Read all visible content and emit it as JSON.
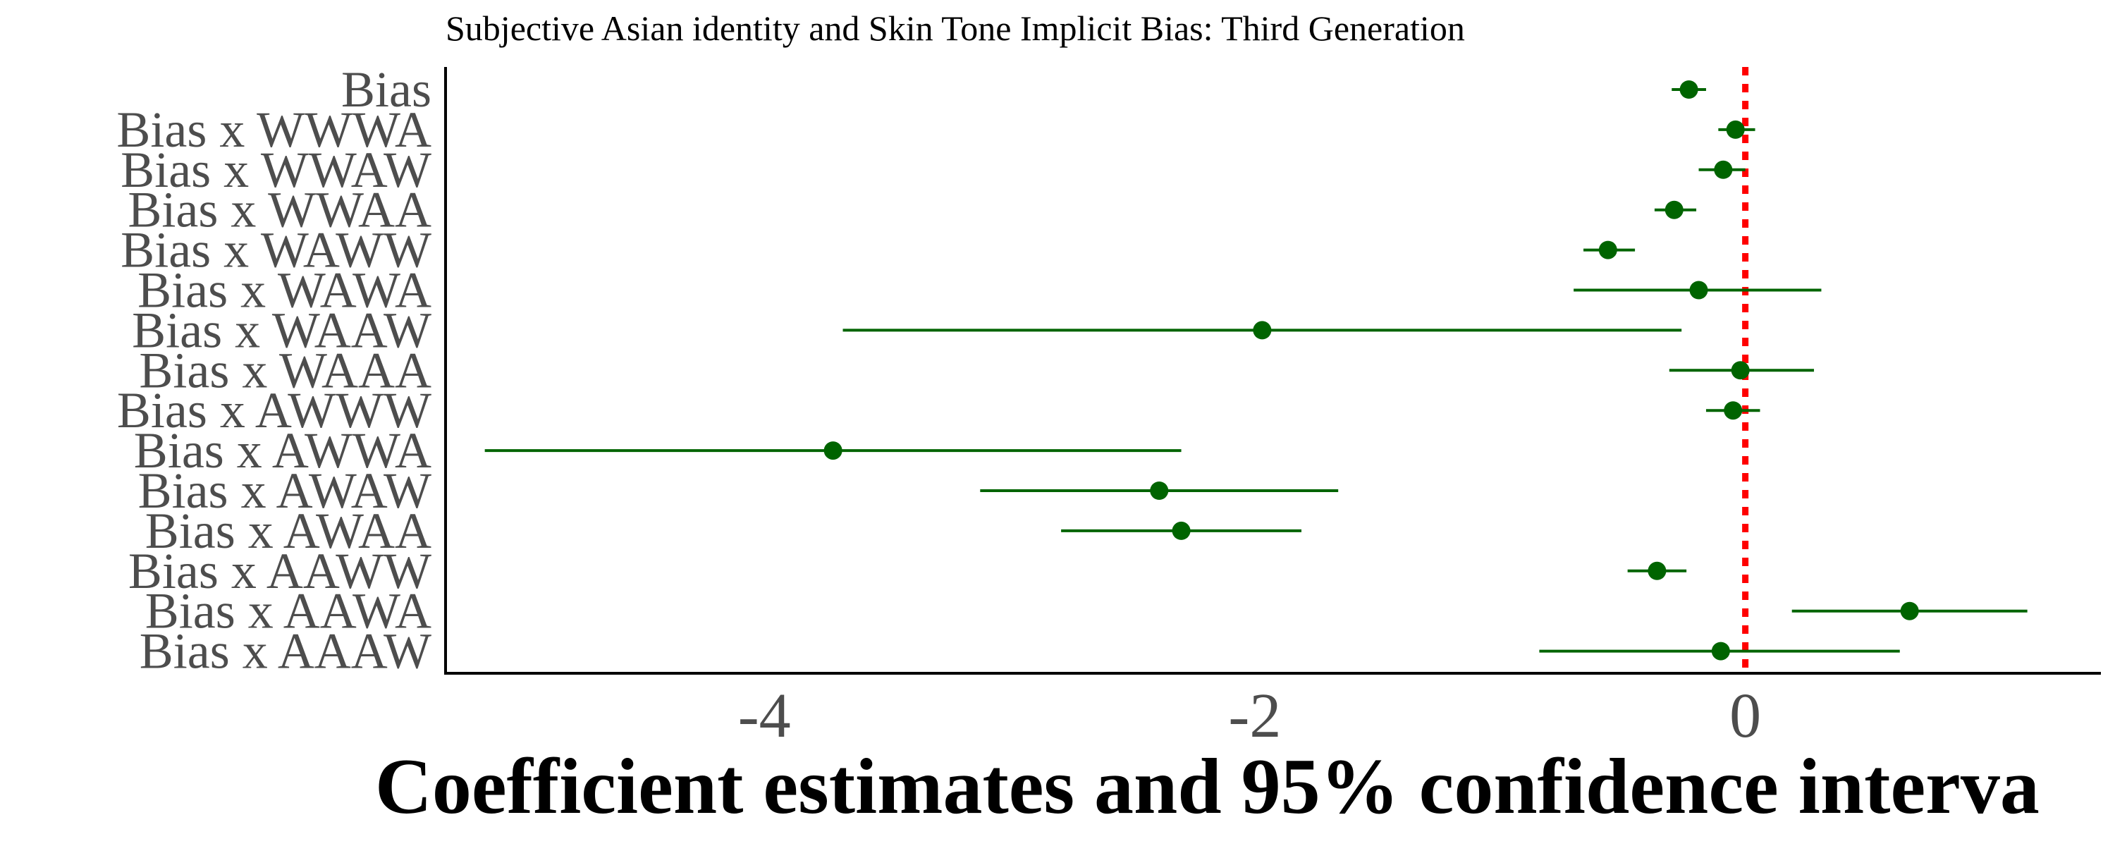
{
  "chart_data": {
    "type": "scatter",
    "title": "Subjective Asian identity and Skin Tone Implicit Bias: Third Generation",
    "xlabel": "Coefficient estimates and 95% confidence interva",
    "ylabel": "",
    "xlim": [
      -5.3,
      1.45
    ],
    "xticks": [
      -4,
      -2,
      0
    ],
    "xtick_labels": [
      "-4",
      "-2",
      "0"
    ],
    "reference_line_x": 0,
    "grid": false,
    "colors": {
      "point": "#006400",
      "interval": "#006400",
      "reference": "#ff0000",
      "axis": "#000000"
    },
    "terms": [
      {
        "label": "Bias",
        "estimate": -0.23,
        "lower": -0.3,
        "upper": -0.16
      },
      {
        "label": "Bias x WWWA",
        "estimate": -0.04,
        "lower": -0.11,
        "upper": 0.04
      },
      {
        "label": "Bias x WWAW",
        "estimate": -0.09,
        "lower": -0.19,
        "upper": 0.0
      },
      {
        "label": "Bias x WWAA",
        "estimate": -0.29,
        "lower": -0.37,
        "upper": -0.2
      },
      {
        "label": "Bias x WAWW",
        "estimate": -0.56,
        "lower": -0.66,
        "upper": -0.45
      },
      {
        "label": "Bias x WAWA",
        "estimate": -0.19,
        "lower": -0.7,
        "upper": 0.31
      },
      {
        "label": "Bias x WAAW",
        "estimate": -1.97,
        "lower": -3.68,
        "upper": -0.26
      },
      {
        "label": "Bias x WAAA",
        "estimate": -0.02,
        "lower": -0.31,
        "upper": 0.28
      },
      {
        "label": "Bias x AWWW",
        "estimate": -0.05,
        "lower": -0.16,
        "upper": 0.06
      },
      {
        "label": "Bias x AWWA",
        "estimate": -3.72,
        "lower": -5.14,
        "upper": -2.3
      },
      {
        "label": "Bias x AWAW",
        "estimate": -2.39,
        "lower": -3.12,
        "upper": -1.66
      },
      {
        "label": "Bias x AWAA",
        "estimate": -2.3,
        "lower": -2.79,
        "upper": -1.81
      },
      {
        "label": "Bias x AAWW",
        "estimate": -0.36,
        "lower": -0.48,
        "upper": -0.24
      },
      {
        "label": "Bias x AAWA",
        "estimate": 0.67,
        "lower": 0.19,
        "upper": 1.15
      },
      {
        "label": "Bias x AAAW",
        "estimate": -0.1,
        "lower": -0.84,
        "upper": 0.63
      }
    ]
  }
}
